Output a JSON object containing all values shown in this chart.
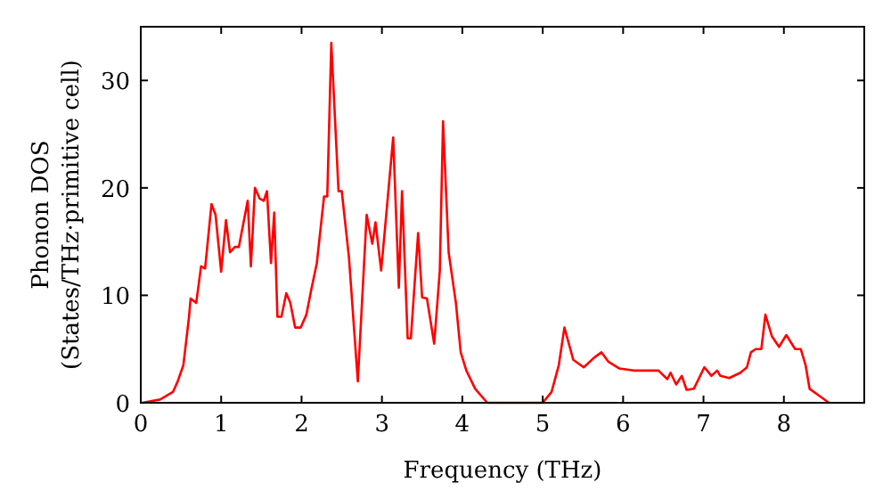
{
  "chart_data": {
    "type": "line",
    "xlabel": "Frequency (THz)",
    "ylabel": "Phonon DOS\n(States/THz·primitive cell)",
    "xlim": [
      0,
      9
    ],
    "ylim": [
      0,
      35
    ],
    "xticks": [
      0,
      1,
      2,
      3,
      4,
      5,
      6,
      7,
      8
    ],
    "yticks": [
      0,
      10,
      20,
      30
    ],
    "grid": false,
    "marker": "none",
    "line_style": "solid",
    "series": [
      {
        "color": "#ff0000",
        "x": [
          0.02,
          0.24,
          0.4,
          0.46,
          0.53,
          0.6,
          0.62,
          0.69,
          0.75,
          0.8,
          0.88,
          0.93,
          1.0,
          1.06,
          1.11,
          1.17,
          1.22,
          1.33,
          1.37,
          1.42,
          1.48,
          1.53,
          1.57,
          1.62,
          1.66,
          1.7,
          1.75,
          1.81,
          1.86,
          1.92,
          1.99,
          2.06,
          2.12,
          2.19,
          2.28,
          2.32,
          2.37,
          2.46,
          2.5,
          2.59,
          2.7,
          2.81,
          2.88,
          2.92,
          2.99,
          3.05,
          3.14,
          3.21,
          3.25,
          3.32,
          3.36,
          3.45,
          3.5,
          3.56,
          3.65,
          3.72,
          3.76,
          3.83,
          3.92,
          3.98,
          4.05,
          4.16,
          4.31,
          5.0,
          5.11,
          5.2,
          5.27,
          5.38,
          5.51,
          5.64,
          5.73,
          5.82,
          5.95,
          6.13,
          6.44,
          6.55,
          6.59,
          6.66,
          6.73,
          6.79,
          6.88,
          7.01,
          7.1,
          7.17,
          7.21,
          7.32,
          7.46,
          7.54,
          7.59,
          7.65,
          7.72,
          7.77,
          7.85,
          7.94,
          8.03,
          8.14,
          8.21,
          8.27,
          8.32,
          8.43,
          8.56
        ],
        "values": [
          0,
          0.3,
          1,
          2,
          3.5,
          8,
          9.7,
          9.3,
          12.7,
          12.5,
          18.5,
          17.5,
          12.2,
          17,
          14,
          14.5,
          14.5,
          18.8,
          12.7,
          20,
          19,
          18.8,
          19.7,
          13,
          17.7,
          8,
          8,
          10.2,
          9.3,
          7,
          7,
          8.2,
          10.5,
          13,
          19.2,
          19.2,
          33.5,
          19.7,
          19.7,
          13.5,
          2,
          17.5,
          14.8,
          16.8,
          12.3,
          17.2,
          24.7,
          10.7,
          19.7,
          6,
          6,
          15.8,
          9.8,
          9.7,
          5.5,
          12.3,
          26.2,
          14,
          9.3,
          4.7,
          3,
          1.3,
          0,
          0,
          1,
          3.5,
          7,
          4,
          3.3,
          4.2,
          4.7,
          3.8,
          3.2,
          3,
          3,
          2.2,
          2.8,
          1.7,
          2.5,
          1.2,
          1.3,
          3.3,
          2.5,
          3,
          2.5,
          2.3,
          2.8,
          3.3,
          4.7,
          5,
          5,
          8.2,
          6.2,
          5.2,
          6.3,
          5,
          5,
          3.5,
          1.3,
          0.7,
          0
        ]
      }
    ]
  }
}
